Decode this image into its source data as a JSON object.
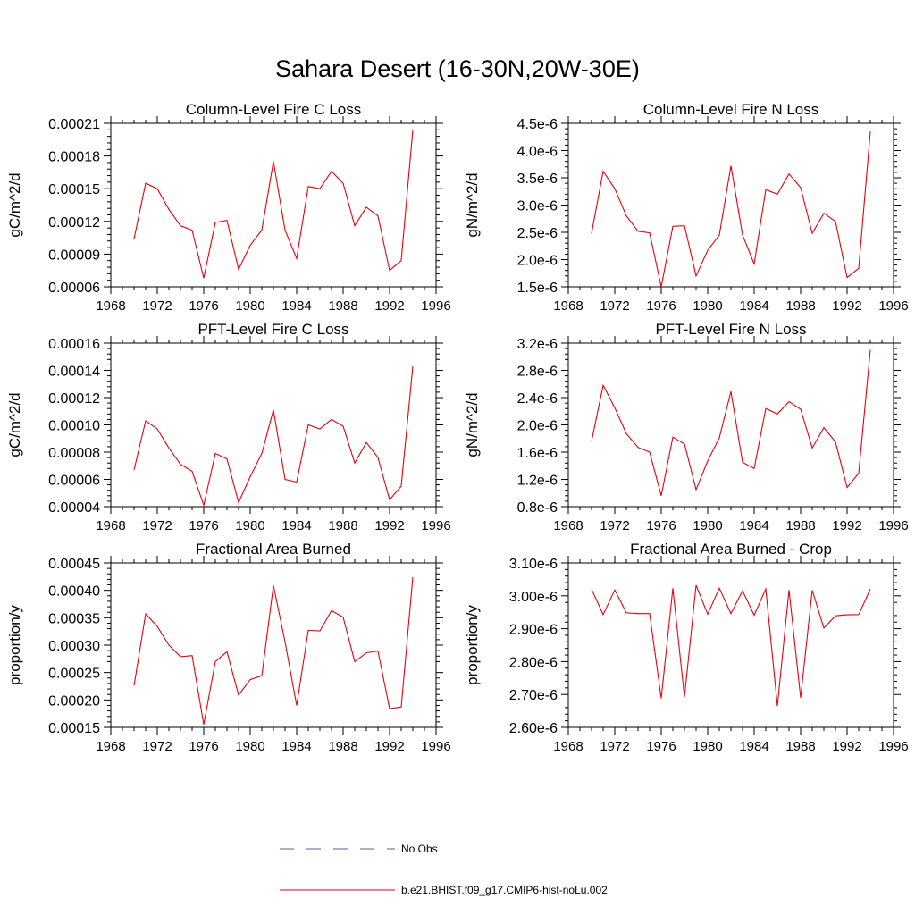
{
  "title": "Sahara Desert (16-30N,20W-30E)",
  "colors": {
    "model": "#e8000b",
    "obs": "#5a5aa8",
    "axis": "#000000"
  },
  "legend": [
    {
      "label": "No Obs",
      "style": "dashed",
      "color": "#5a5aa8"
    },
    {
      "label": "b.e21.BHIST.f09_g17.CMIP6-hist-noLu.002",
      "style": "solid",
      "color": "#e8000b"
    }
  ],
  "chart_data": [
    {
      "type": "line",
      "title": "Column-Level Fire C Loss",
      "ylabel": "gC/m^2/d",
      "xlim": [
        1968,
        1996
      ],
      "ylim": [
        6e-05,
        0.00021
      ],
      "xticks": [
        1968,
        1972,
        1976,
        1980,
        1984,
        1988,
        1992,
        1996
      ],
      "xtick_labels": [
        "1968",
        "1972",
        "1976",
        "1980",
        "1984",
        "1988",
        "1992",
        "1996"
      ],
      "yticks": [
        6e-05,
        9e-05,
        0.00012,
        0.00015,
        0.00018,
        0.00021
      ],
      "ytick_labels": [
        "0.00006",
        "0.00009",
        "0.00012",
        "0.00015",
        "0.00018",
        "0.00021"
      ],
      "series": [
        {
          "name": "b.e21.BHIST.f09_g17.CMIP6-hist-noLu.002",
          "x": [
            1970,
            1971,
            1972,
            1973,
            1974,
            1975,
            1976,
            1977,
            1978,
            1979,
            1980,
            1981,
            1982,
            1983,
            1984,
            1985,
            1986,
            1987,
            1988,
            1989,
            1990,
            1991,
            1992,
            1993,
            1994
          ],
          "y": [
            0.000104,
            0.000155,
            0.00015,
            0.000131,
            0.000116,
            0.000112,
            6.8e-05,
            0.000119,
            0.000121,
            7.6e-05,
            9.8e-05,
            0.000112,
            0.000175,
            0.000112,
            8.6e-05,
            0.000152,
            0.00015,
            0.000166,
            0.000155,
            0.000116,
            0.000133,
            0.000125,
            7.5e-05,
            8.4e-05,
            0.000204
          ]
        }
      ]
    },
    {
      "type": "line",
      "title": "Column-Level Fire N Loss",
      "ylabel": "gN/m^2/d",
      "xlim": [
        1968,
        1996
      ],
      "ylim": [
        1.5e-06,
        4.5e-06
      ],
      "xticks": [
        1968,
        1972,
        1976,
        1980,
        1984,
        1988,
        1992,
        1996
      ],
      "xtick_labels": [
        "1968",
        "1972",
        "1976",
        "1980",
        "1984",
        "1988",
        "1992",
        "1996"
      ],
      "yticks": [
        1.5e-06,
        2e-06,
        2.5e-06,
        3e-06,
        3.5e-06,
        4e-06,
        4.5e-06
      ],
      "ytick_labels": [
        "1.5e-6",
        "2.0e-6",
        "2.5e-6",
        "3.0e-6",
        "3.5e-6",
        "4.0e-6",
        "4.5e-6"
      ],
      "series": [
        {
          "name": "b.e21.BHIST.f09_g17.CMIP6-hist-noLu.002",
          "x": [
            1970,
            1971,
            1972,
            1973,
            1974,
            1975,
            1976,
            1977,
            1978,
            1979,
            1980,
            1981,
            1982,
            1983,
            1984,
            1985,
            1986,
            1987,
            1988,
            1989,
            1990,
            1991,
            1992,
            1993,
            1994
          ],
          "y": [
            2.48e-06,
            3.62e-06,
            3.3e-06,
            2.8e-06,
            2.52e-06,
            2.49e-06,
            1.5e-06,
            2.61e-06,
            2.62e-06,
            1.7e-06,
            2.17e-06,
            2.45e-06,
            3.72e-06,
            2.45e-06,
            1.92e-06,
            3.28e-06,
            3.2e-06,
            3.57e-06,
            3.32e-06,
            2.48e-06,
            2.85e-06,
            2.7e-06,
            1.67e-06,
            1.84e-06,
            4.35e-06
          ]
        }
      ]
    },
    {
      "type": "line",
      "title": "PFT-Level Fire C Loss",
      "ylabel": "gC/m^2/d",
      "xlim": [
        1968,
        1996
      ],
      "ylim": [
        4e-05,
        0.00016
      ],
      "xticks": [
        1968,
        1972,
        1976,
        1980,
        1984,
        1988,
        1992,
        1996
      ],
      "xtick_labels": [
        "1968",
        "1972",
        "1976",
        "1980",
        "1984",
        "1988",
        "1992",
        "1996"
      ],
      "yticks": [
        4e-05,
        6e-05,
        8e-05,
        0.0001,
        0.00012,
        0.00014,
        0.00016
      ],
      "ytick_labels": [
        "0.00004",
        "0.00006",
        "0.00008",
        "0.00010",
        "0.00012",
        "0.00014",
        "0.00016"
      ],
      "series": [
        {
          "name": "b.e21.BHIST.f09_g17.CMIP6-hist-noLu.002",
          "x": [
            1970,
            1971,
            1972,
            1973,
            1974,
            1975,
            1976,
            1977,
            1978,
            1979,
            1980,
            1981,
            1982,
            1983,
            1984,
            1985,
            1986,
            1987,
            1988,
            1989,
            1990,
            1991,
            1992,
            1993,
            1994
          ],
          "y": [
            6.7e-05,
            0.000103,
            9.7e-05,
            8.3e-05,
            7.1e-05,
            6.6e-05,
            4.1e-05,
            7.9e-05,
            7.5e-05,
            4.3e-05,
            6.2e-05,
            7.9e-05,
            0.000111,
            6e-05,
            5.8e-05,
            0.0001,
            9.7e-05,
            0.000104,
            9.9e-05,
            7.2e-05,
            8.7e-05,
            7.6e-05,
            4.5e-05,
            5.5e-05,
            0.000143
          ]
        }
      ]
    },
    {
      "type": "line",
      "title": "PFT-Level Fire N Loss",
      "ylabel": "gN/m^2/d",
      "xlim": [
        1968,
        1996
      ],
      "ylim": [
        8e-07,
        3.2e-06
      ],
      "xticks": [
        1968,
        1972,
        1976,
        1980,
        1984,
        1988,
        1992,
        1996
      ],
      "xtick_labels": [
        "1968",
        "1972",
        "1976",
        "1980",
        "1984",
        "1988",
        "1992",
        "1996"
      ],
      "yticks": [
        8e-07,
        1.2e-06,
        1.6e-06,
        2e-06,
        2.4e-06,
        2.8e-06,
        3.2e-06
      ],
      "ytick_labels": [
        "0.8e-6",
        "1.2e-6",
        "1.6e-6",
        "2.0e-6",
        "2.4e-6",
        "2.8e-6",
        "3.2e-6"
      ],
      "series": [
        {
          "name": "b.e21.BHIST.f09_g17.CMIP6-hist-noLu.002",
          "x": [
            1970,
            1971,
            1972,
            1973,
            1974,
            1975,
            1976,
            1977,
            1978,
            1979,
            1980,
            1981,
            1982,
            1983,
            1984,
            1985,
            1986,
            1987,
            1988,
            1989,
            1990,
            1991,
            1992,
            1993,
            1994
          ],
          "y": [
            1.76e-06,
            2.58e-06,
            2.25e-06,
            1.87e-06,
            1.67e-06,
            1.6e-06,
            9.6e-07,
            1.82e-06,
            1.72e-06,
            1.05e-06,
            1.47e-06,
            1.81e-06,
            2.49e-06,
            1.45e-06,
            1.36e-06,
            2.24e-06,
            2.16e-06,
            2.34e-06,
            2.23e-06,
            1.66e-06,
            1.96e-06,
            1.75e-06,
            1.08e-06,
            1.29e-06,
            3.1e-06
          ]
        }
      ]
    },
    {
      "type": "line",
      "title": "Fractional Area Burned",
      "ylabel": "proportion/y",
      "xlim": [
        1968,
        1996
      ],
      "ylim": [
        0.00015,
        0.00045
      ],
      "xticks": [
        1968,
        1972,
        1976,
        1980,
        1984,
        1988,
        1992,
        1996
      ],
      "xtick_labels": [
        "1968",
        "1972",
        "1976",
        "1980",
        "1984",
        "1988",
        "1992",
        "1996"
      ],
      "yticks": [
        0.00015,
        0.0002,
        0.00025,
        0.0003,
        0.00035,
        0.0004,
        0.00045
      ],
      "ytick_labels": [
        "0.00015",
        "0.00020",
        "0.00025",
        "0.00030",
        "0.00035",
        "0.00040",
        "0.00045"
      ],
      "series": [
        {
          "name": "b.e21.BHIST.f09_g17.CMIP6-hist-noLu.002",
          "x": [
            1970,
            1971,
            1972,
            1973,
            1974,
            1975,
            1976,
            1977,
            1978,
            1979,
            1980,
            1981,
            1982,
            1983,
            1984,
            1985,
            1986,
            1987,
            1988,
            1989,
            1990,
            1991,
            1992,
            1993,
            1994
          ],
          "y": [
            0.000226,
            0.000357,
            0.000334,
            0.0003,
            0.000279,
            0.000281,
            0.000155,
            0.00027,
            0.000288,
            0.000209,
            0.000237,
            0.000244,
            0.000409,
            0.000306,
            0.00019,
            0.000327,
            0.000326,
            0.000363,
            0.000351,
            0.00027,
            0.000286,
            0.000289,
            0.000184,
            0.000187,
            0.000424
          ]
        }
      ]
    },
    {
      "type": "line",
      "title": "Fractional Area Burned - Crop",
      "ylabel": "proportion/y",
      "xlim": [
        1968,
        1996
      ],
      "ylim": [
        2.6e-06,
        3.1e-06
      ],
      "xticks": [
        1968,
        1972,
        1976,
        1980,
        1984,
        1988,
        1992,
        1996
      ],
      "xtick_labels": [
        "1968",
        "1972",
        "1976",
        "1980",
        "1984",
        "1988",
        "1992",
        "1996"
      ],
      "yticks": [
        2.6e-06,
        2.7e-06,
        2.8e-06,
        2.9e-06,
        3e-06,
        3.1e-06
      ],
      "ytick_labels": [
        "2.60e-6",
        "2.70e-6",
        "2.80e-6",
        "2.90e-6",
        "3.00e-6",
        "3.10e-6"
      ],
      "series": [
        {
          "name": "b.e21.BHIST.f09_g17.CMIP6-hist-noLu.002",
          "x": [
            1970,
            1971,
            1972,
            1973,
            1974,
            1975,
            1976,
            1977,
            1978,
            1979,
            1980,
            1981,
            1982,
            1983,
            1984,
            1985,
            1986,
            1987,
            1988,
            1989,
            1990,
            1991,
            1992,
            1993,
            1994
          ],
          "y": [
            3.02e-06,
            2.943e-06,
            3.018e-06,
            2.948e-06,
            2.946e-06,
            2.946e-06,
            2.688e-06,
            3.023e-06,
            2.692e-06,
            3.032e-06,
            2.944e-06,
            3.023e-06,
            2.946e-06,
            3.015e-06,
            2.941e-06,
            3.021e-06,
            2.665e-06,
            3.018e-06,
            2.69e-06,
            3.017e-06,
            2.902e-06,
            2.939e-06,
            2.942e-06,
            2.943e-06,
            3.02e-06
          ]
        }
      ]
    }
  ]
}
